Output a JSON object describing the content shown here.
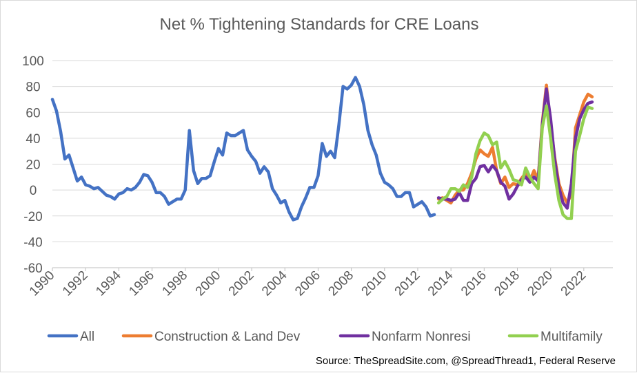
{
  "chart_data": {
    "type": "line",
    "title": "Net % Tightening Standards for CRE Loans",
    "xlabel": "",
    "ylabel": "",
    "xlim": [
      1990,
      2023.75
    ],
    "ylim": [
      -60,
      100
    ],
    "yticks": [
      100,
      80,
      60,
      40,
      20,
      0,
      -20,
      -40,
      -60
    ],
    "xticks": [
      "1990",
      "1992",
      "1994",
      "1996",
      "1998",
      "2000",
      "2002",
      "2004",
      "2006",
      "2008",
      "2010",
      "2012",
      "2014",
      "2016",
      "2018",
      "2020",
      "2022"
    ],
    "grid": true,
    "legend_position": "bottom",
    "source": "Source: TheSpreadSite.com, @SpreadThread1, Federal Reserve",
    "series": [
      {
        "name": "All",
        "color": "#4472C4",
        "points": [
          [
            1990.0,
            70
          ],
          [
            1990.25,
            61
          ],
          [
            1990.5,
            45
          ],
          [
            1990.75,
            24
          ],
          [
            1991.0,
            27
          ],
          [
            1991.25,
            17
          ],
          [
            1991.5,
            7
          ],
          [
            1991.75,
            10
          ],
          [
            1992.0,
            4
          ],
          [
            1992.25,
            3
          ],
          [
            1992.5,
            1
          ],
          [
            1992.75,
            2
          ],
          [
            1993.0,
            -1
          ],
          [
            1993.25,
            -4
          ],
          [
            1993.5,
            -5
          ],
          [
            1993.75,
            -7
          ],
          [
            1994.0,
            -3
          ],
          [
            1994.25,
            -2
          ],
          [
            1994.5,
            1
          ],
          [
            1994.75,
            0
          ],
          [
            1995.0,
            2
          ],
          [
            1995.25,
            6
          ],
          [
            1995.5,
            12
          ],
          [
            1995.75,
            11
          ],
          [
            1996.0,
            6
          ],
          [
            1996.25,
            -2
          ],
          [
            1996.5,
            -2
          ],
          [
            1996.75,
            -5
          ],
          [
            1997.0,
            -11
          ],
          [
            1997.25,
            -9
          ],
          [
            1997.5,
            -7
          ],
          [
            1997.75,
            -7
          ],
          [
            1998.0,
            0
          ],
          [
            1998.25,
            46
          ],
          [
            1998.5,
            15
          ],
          [
            1998.75,
            5
          ],
          [
            1999.0,
            9
          ],
          [
            1999.25,
            9
          ],
          [
            1999.5,
            11
          ],
          [
            1999.75,
            22
          ],
          [
            2000.0,
            32
          ],
          [
            2000.25,
            27
          ],
          [
            2000.5,
            44
          ],
          [
            2000.75,
            42
          ],
          [
            2001.0,
            42
          ],
          [
            2001.25,
            44
          ],
          [
            2001.5,
            46
          ],
          [
            2001.75,
            31
          ],
          [
            2002.0,
            26
          ],
          [
            2002.25,
            22
          ],
          [
            2002.5,
            13
          ],
          [
            2002.75,
            18
          ],
          [
            2003.0,
            14
          ],
          [
            2003.25,
            1
          ],
          [
            2003.5,
            -4
          ],
          [
            2003.75,
            -10
          ],
          [
            2004.0,
            -8
          ],
          [
            2004.25,
            -17
          ],
          [
            2004.5,
            -23
          ],
          [
            2004.75,
            -22
          ],
          [
            2005.0,
            -13
          ],
          [
            2005.25,
            -6
          ],
          [
            2005.5,
            2
          ],
          [
            2005.75,
            2
          ],
          [
            2006.0,
            11
          ],
          [
            2006.25,
            36
          ],
          [
            2006.5,
            26
          ],
          [
            2006.75,
            30
          ],
          [
            2007.0,
            25
          ],
          [
            2007.25,
            50
          ],
          [
            2007.5,
            80
          ],
          [
            2007.75,
            78
          ],
          [
            2008.0,
            81
          ],
          [
            2008.25,
            87
          ],
          [
            2008.5,
            80
          ],
          [
            2008.75,
            66
          ],
          [
            2009.0,
            46
          ],
          [
            2009.25,
            35
          ],
          [
            2009.5,
            27
          ],
          [
            2009.75,
            13
          ],
          [
            2010.0,
            6
          ],
          [
            2010.25,
            4
          ],
          [
            2010.5,
            1
          ],
          [
            2010.75,
            -5
          ],
          [
            2011.0,
            -5
          ],
          [
            2011.25,
            -2
          ],
          [
            2011.5,
            -2
          ],
          [
            2011.75,
            -13
          ],
          [
            2012.0,
            -11
          ],
          [
            2012.25,
            -9
          ],
          [
            2012.5,
            -13
          ],
          [
            2012.75,
            -20
          ],
          [
            2013.0,
            -19
          ]
        ]
      },
      {
        "name": "Construction & Land Dev",
        "color": "#ED7D31",
        "points": [
          [
            2013.25,
            -7
          ],
          [
            2013.5,
            -6
          ],
          [
            2013.75,
            -8
          ],
          [
            2014.0,
            -10
          ],
          [
            2014.25,
            -4
          ],
          [
            2014.5,
            0
          ],
          [
            2014.75,
            0
          ],
          [
            2015.0,
            5
          ],
          [
            2015.25,
            13
          ],
          [
            2015.5,
            24
          ],
          [
            2015.75,
            31
          ],
          [
            2016.0,
            28
          ],
          [
            2016.25,
            26
          ],
          [
            2016.5,
            33
          ],
          [
            2016.75,
            15
          ],
          [
            2017.0,
            5
          ],
          [
            2017.25,
            10
          ],
          [
            2017.5,
            2
          ],
          [
            2017.75,
            5
          ],
          [
            2018.0,
            4
          ],
          [
            2018.25,
            9
          ],
          [
            2018.5,
            13
          ],
          [
            2018.75,
            7
          ],
          [
            2019.0,
            15
          ],
          [
            2019.25,
            8
          ],
          [
            2019.5,
            52
          ],
          [
            2019.75,
            81
          ],
          [
            2020.0,
            50
          ],
          [
            2020.25,
            25
          ],
          [
            2020.5,
            5
          ],
          [
            2020.75,
            -4
          ],
          [
            2021.0,
            -10
          ],
          [
            2021.25,
            -3
          ],
          [
            2021.5,
            48
          ],
          [
            2021.75,
            58
          ],
          [
            2022.0,
            68
          ],
          [
            2022.25,
            74
          ],
          [
            2022.5,
            72
          ]
        ]
      },
      {
        "name": "Nonfarm Nonresi",
        "color": "#7030A0",
        "points": [
          [
            2013.25,
            -6
          ],
          [
            2013.5,
            -7
          ],
          [
            2013.75,
            -7
          ],
          [
            2014.0,
            -8
          ],
          [
            2014.25,
            -7
          ],
          [
            2014.5,
            -2
          ],
          [
            2014.75,
            -8
          ],
          [
            2015.0,
            -8
          ],
          [
            2015.25,
            5
          ],
          [
            2015.5,
            9
          ],
          [
            2015.75,
            18
          ],
          [
            2016.0,
            19
          ],
          [
            2016.25,
            14
          ],
          [
            2016.5,
            19
          ],
          [
            2016.75,
            15
          ],
          [
            2017.0,
            6
          ],
          [
            2017.25,
            3
          ],
          [
            2017.5,
            -7
          ],
          [
            2017.75,
            -3
          ],
          [
            2018.0,
            3
          ],
          [
            2018.25,
            8
          ],
          [
            2018.5,
            10
          ],
          [
            2018.75,
            6
          ],
          [
            2019.0,
            10
          ],
          [
            2019.25,
            7
          ],
          [
            2019.5,
            50
          ],
          [
            2019.75,
            78
          ],
          [
            2020.0,
            55
          ],
          [
            2020.25,
            23
          ],
          [
            2020.5,
            2
          ],
          [
            2020.75,
            -10
          ],
          [
            2021.0,
            -14
          ],
          [
            2021.25,
            5
          ],
          [
            2021.5,
            40
          ],
          [
            2021.75,
            55
          ],
          [
            2022.0,
            62
          ],
          [
            2022.25,
            67
          ],
          [
            2022.5,
            68
          ]
        ]
      },
      {
        "name": "Multifamily",
        "color": "#92D050",
        "points": [
          [
            2013.25,
            -10
          ],
          [
            2013.5,
            -7
          ],
          [
            2013.75,
            -5
          ],
          [
            2014.0,
            1
          ],
          [
            2014.25,
            1
          ],
          [
            2014.5,
            -1
          ],
          [
            2014.75,
            4
          ],
          [
            2015.0,
            2
          ],
          [
            2015.25,
            10
          ],
          [
            2015.5,
            28
          ],
          [
            2015.75,
            38
          ],
          [
            2016.0,
            44
          ],
          [
            2016.25,
            42
          ],
          [
            2016.5,
            35
          ],
          [
            2016.75,
            37
          ],
          [
            2017.0,
            17
          ],
          [
            2017.25,
            22
          ],
          [
            2017.5,
            16
          ],
          [
            2017.75,
            8
          ],
          [
            2018.0,
            7
          ],
          [
            2018.25,
            4
          ],
          [
            2018.5,
            17
          ],
          [
            2018.75,
            10
          ],
          [
            2019.0,
            5
          ],
          [
            2019.25,
            1
          ],
          [
            2019.5,
            48
          ],
          [
            2019.75,
            65
          ],
          [
            2020.0,
            40
          ],
          [
            2020.25,
            12
          ],
          [
            2020.5,
            -8
          ],
          [
            2020.75,
            -19
          ],
          [
            2021.0,
            -22
          ],
          [
            2021.25,
            -22
          ],
          [
            2021.5,
            30
          ],
          [
            2021.75,
            42
          ],
          [
            2022.0,
            55
          ],
          [
            2022.25,
            64
          ],
          [
            2022.5,
            63
          ]
        ]
      }
    ]
  }
}
